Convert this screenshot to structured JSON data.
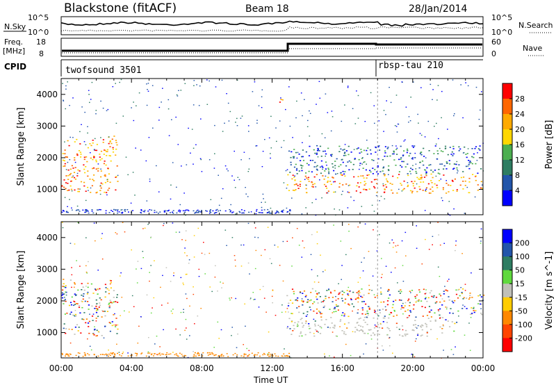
{
  "header": {
    "station": "Blackstone (fitACF)",
    "beam": "Beam 18",
    "date": "28/Jan/2014"
  },
  "summary_panels": {
    "noise": {
      "left_label": "N.Sky",
      "right_label": "N.Search",
      "left_ticks": [
        "10^5",
        "10^0"
      ],
      "right_ticks": [
        "10^5",
        "10^0"
      ]
    },
    "freq": {
      "left_label_line1": "Freq.",
      "left_label_line2": "[MHz]",
      "right_label": "Nave",
      "left_ticks": [
        "18",
        "8"
      ],
      "right_ticks": [
        "60",
        "0"
      ]
    },
    "cpid": {
      "label": "CPID",
      "programs": [
        {
          "name": "twofsound 3501",
          "start_hour": 0
        },
        {
          "name": "rbsp-tau 210",
          "start_hour": 18
        }
      ]
    }
  },
  "chart_data": [
    {
      "type": "heatmap",
      "title": "",
      "quantity": "Power",
      "xlabel": "",
      "ylabel": "Slant Range [km]",
      "colorbar_label": "Power [dB]",
      "colorbar_ticks": [
        "28",
        "24",
        "20",
        "16",
        "12",
        "8",
        "4"
      ],
      "colorbar_colors": [
        "#ff0000",
        "#ff6600",
        "#ffaa00",
        "#ffd700",
        "#4caf50",
        "#2e7d62",
        "#2255aa",
        "#0000ff"
      ],
      "xlim_hours": [
        0,
        24
      ],
      "ylim": [
        200,
        4500
      ],
      "yticks": [
        1000,
        2000,
        3000,
        4000
      ],
      "xticks": [
        "00:00",
        "04:00",
        "08:00",
        "12:00",
        "16:00",
        "20:00",
        "00:00"
      ],
      "regions": [
        {
          "t0": 0.0,
          "t1": 3.2,
          "r0": 900,
          "r1": 2700,
          "level": "high",
          "note": "early scatter"
        },
        {
          "t0": 12.8,
          "t1": 24.0,
          "r0": 900,
          "r1": 1500,
          "level": "high",
          "note": "main echo band"
        },
        {
          "t0": 12.8,
          "t1": 24.0,
          "r0": 1500,
          "r1": 2400,
          "level": "low",
          "note": "upper band"
        },
        {
          "t0": 12.4,
          "t1": 12.7,
          "r0": 3600,
          "r1": 4000,
          "level": "high",
          "note": "isolated echo"
        }
      ]
    },
    {
      "type": "heatmap",
      "title": "",
      "quantity": "Velocity",
      "xlabel": "Time UT",
      "ylabel": "Slant Range [km]",
      "colorbar_label": "Velocity [m s^-1]",
      "colorbar_ticks": [
        "200",
        "100",
        "50",
        "15",
        "-15",
        "-50",
        "-100",
        "-200"
      ],
      "colorbar_colors": [
        "#0000ff",
        "#2255aa",
        "#2e7d62",
        "#5fd93d",
        "#c0c0b8",
        "#ffcc00",
        "#ff8800",
        "#ff4400",
        "#ff0000"
      ],
      "xlim_hours": [
        0,
        24
      ],
      "ylim": [
        200,
        4500
      ],
      "yticks": [
        1000,
        2000,
        3000,
        4000
      ],
      "xticks": [
        "00:00",
        "04:00",
        "08:00",
        "12:00",
        "16:00",
        "20:00",
        "00:00"
      ],
      "regions": [
        {
          "t0": 0.0,
          "t1": 3.2,
          "r0": 900,
          "r1": 2700,
          "level": "mixed",
          "note": "early scatter"
        },
        {
          "t0": 12.8,
          "t1": 22.5,
          "r0": 900,
          "r1": 1500,
          "level": "ground",
          "note": "ground scatter band"
        },
        {
          "t0": 12.8,
          "t1": 24.0,
          "r0": 1500,
          "r1": 2400,
          "level": "mixed",
          "note": "upper band"
        }
      ]
    }
  ]
}
